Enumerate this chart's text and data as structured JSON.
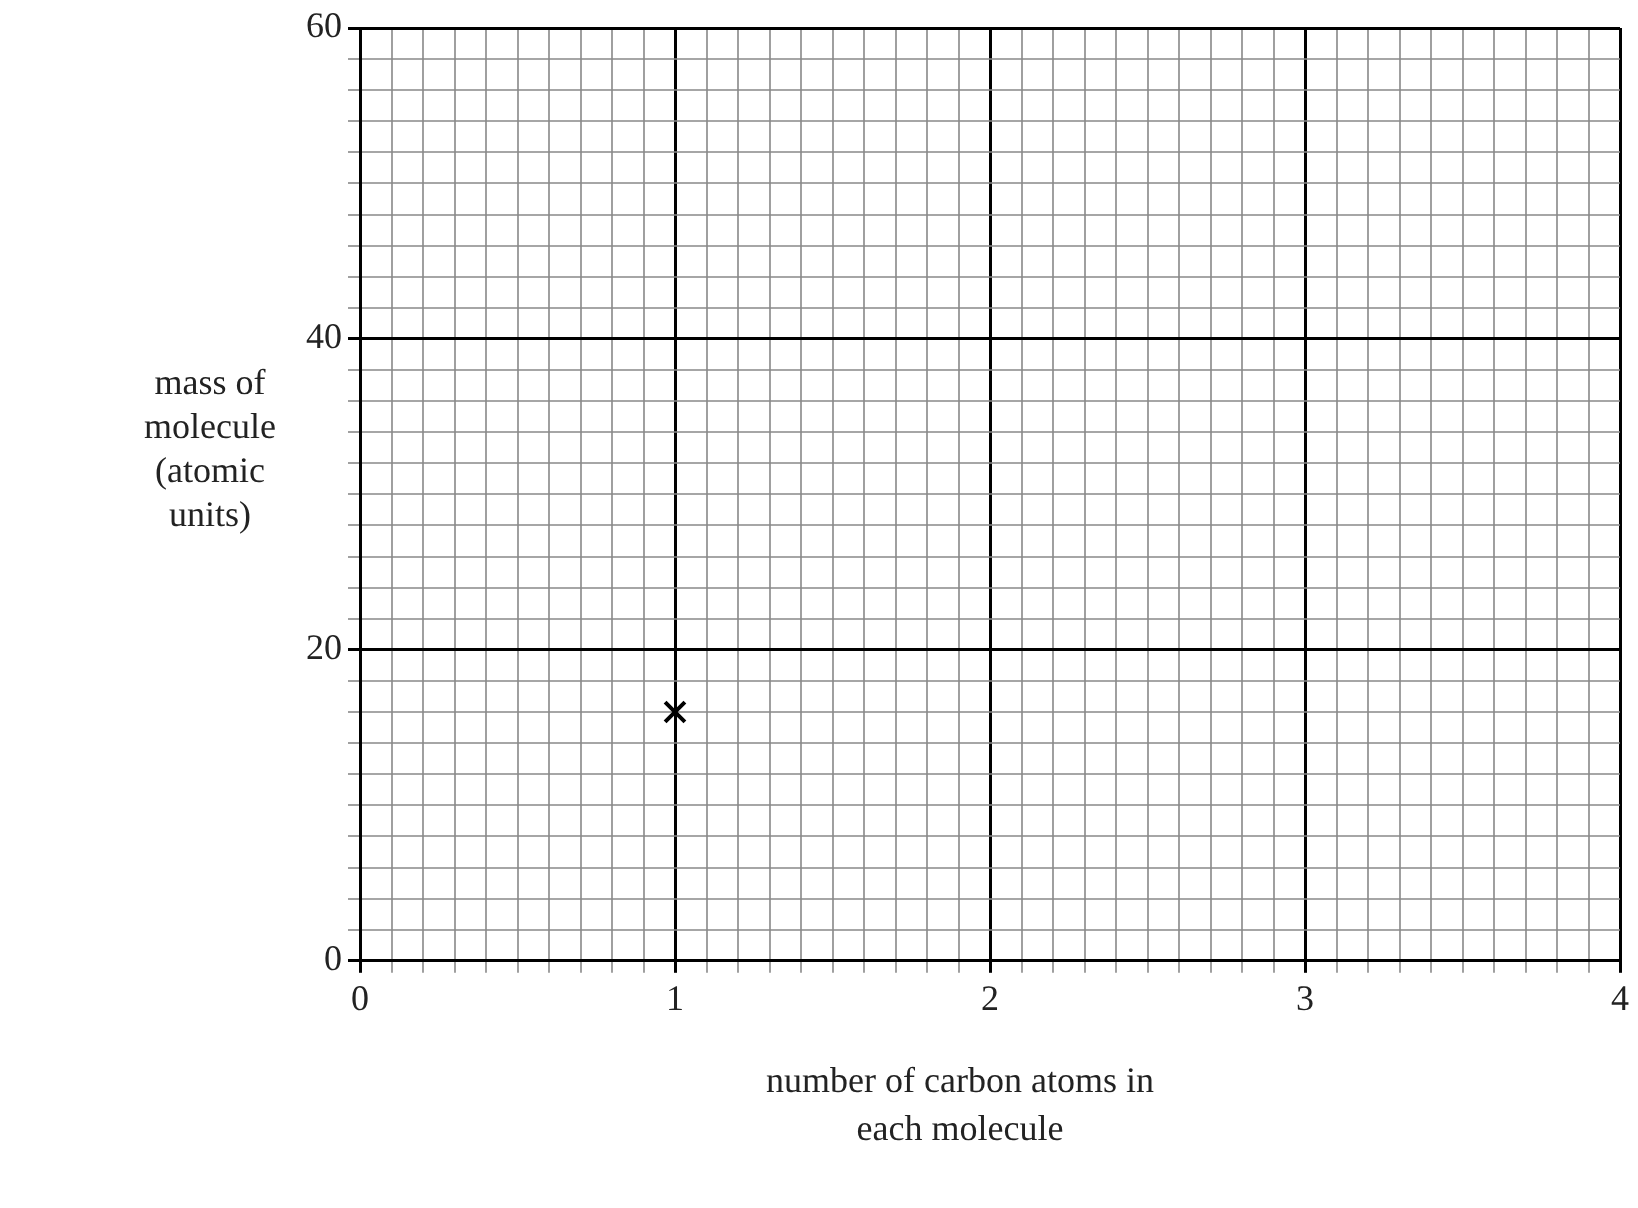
{
  "chart_data": {
    "type": "scatter",
    "xlabel": "number of carbon atoms in each molecule",
    "ylabel": "mass of molecule (atomic units)",
    "x": [
      1
    ],
    "values": [
      16
    ],
    "color": "#000000",
    "marker": "cross",
    "grid": true,
    "legend": false,
    "xlim": [
      0,
      4
    ],
    "ylim": [
      0,
      60
    ],
    "xticks": [
      0,
      {
        "value": 0.1,
        "label": null
      },
      {
        "value": 0.2,
        "label": null
      },
      {
        "value": 0.3,
        "label": null
      },
      {
        "value": 0.4,
        "label": null
      },
      {
        "value": 0.5,
        "label": null
      },
      {
        "value": 0.6,
        "label": null
      },
      {
        "value": 0.7,
        "label": null
      },
      {
        "value": 0.8,
        "label": null
      },
      {
        "value": 0.9,
        "label": null
      },
      1,
      {
        "value": 1.1,
        "label": null
      },
      {
        "value": 1.2,
        "label": null
      },
      {
        "value": 1.3,
        "label": null
      },
      {
        "value": 1.4,
        "label": null
      },
      {
        "value": 1.5,
        "label": null
      },
      {
        "value": 1.6,
        "label": null
      },
      {
        "value": 1.7,
        "label": null
      },
      {
        "value": 1.8,
        "label": null
      },
      {
        "value": 1.9,
        "label": null
      },
      2,
      {
        "value": 2.1,
        "label": null
      },
      {
        "value": 2.2,
        "label": null
      },
      {
        "value": 2.3,
        "label": null
      },
      {
        "value": 2.4,
        "label": null
      },
      {
        "value": 2.5,
        "label": null
      },
      {
        "value": 2.6,
        "label": null
      },
      {
        "value": 2.7,
        "label": null
      },
      {
        "value": 2.8,
        "label": null
      },
      {
        "value": 2.9,
        "label": null
      },
      3,
      {
        "value": 3.1,
        "label": null
      },
      {
        "value": 3.2,
        "label": null
      },
      {
        "value": 3.3,
        "label": null
      },
      {
        "value": 3.4,
        "label": null
      },
      {
        "value": 3.5,
        "label": null
      },
      {
        "value": 3.6,
        "label": null
      },
      {
        "value": 3.7,
        "label": null
      },
      {
        "value": 3.8,
        "label": null
      },
      {
        "value": 3.9,
        "label": null
      },
      4
    ],
    "yticks": [
      0,
      {
        "value": 2,
        "label": null
      },
      {
        "value": 4,
        "label": null
      },
      {
        "value": 6,
        "label": null
      },
      {
        "value": 8,
        "label": null
      },
      {
        "value": 10,
        "label": null
      },
      {
        "value": 12,
        "label": null
      },
      {
        "value": 14,
        "label": null
      },
      {
        "value": 16,
        "label": null
      },
      {
        "value": 18,
        "label": null
      },
      20,
      {
        "value": 22,
        "label": null
      },
      {
        "value": 24,
        "label": null
      },
      {
        "value": 26,
        "label": null
      },
      {
        "value": 28,
        "label": null
      },
      {
        "value": 30,
        "label": null
      },
      {
        "value": 32,
        "label": null
      },
      {
        "value": 34,
        "label": null
      },
      {
        "value": 36,
        "label": null
      },
      {
        "value": 38,
        "label": null
      },
      40,
      {
        "value": 42,
        "label": null
      },
      {
        "value": 44,
        "label": null
      },
      {
        "value": 46,
        "label": null
      },
      {
        "value": 48,
        "label": null
      },
      {
        "value": 50,
        "label": null
      },
      {
        "value": 52,
        "label": null
      },
      {
        "value": 54,
        "label": null
      },
      {
        "value": 56,
        "label": null
      },
      {
        "value": 58,
        "label": null
      },
      60
    ]
  }
}
